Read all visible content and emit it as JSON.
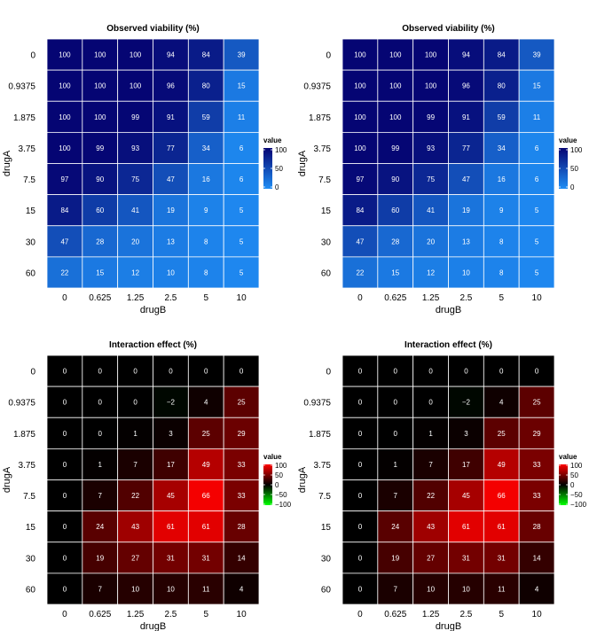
{
  "chart_data": [
    {
      "type": "heatmap",
      "panel": "top-left",
      "title": "Observed viability (%)",
      "xlabel": "drugB",
      "ylabel": "drugA",
      "x_categories": [
        "0",
        "0.625",
        "1.25",
        "2.5",
        "5",
        "10"
      ],
      "y_categories": [
        "0",
        "0.9375",
        "1.875",
        "3.75",
        "7.5",
        "15",
        "30",
        "60"
      ],
      "values": [
        [
          100,
          100,
          100,
          94,
          84,
          39
        ],
        [
          100,
          100,
          100,
          96,
          80,
          15
        ],
        [
          100,
          100,
          99,
          91,
          59,
          11
        ],
        [
          100,
          99,
          93,
          77,
          34,
          6
        ],
        [
          97,
          90,
          75,
          47,
          16,
          6
        ],
        [
          84,
          60,
          41,
          19,
          9,
          5
        ],
        [
          47,
          28,
          20,
          13,
          8,
          5
        ],
        [
          22,
          15,
          12,
          10,
          8,
          5
        ]
      ],
      "scale": "viability",
      "legend": {
        "title": "value",
        "ticks": [
          "100",
          "50",
          "0"
        ],
        "range": [
          0,
          100
        ]
      }
    },
    {
      "type": "heatmap",
      "panel": "top-right",
      "title": "Observed viability (%)",
      "xlabel": "drugB",
      "ylabel": "drugA",
      "x_categories": [
        "0",
        "0.625",
        "1.25",
        "2.5",
        "5",
        "10"
      ],
      "y_categories": [
        "0",
        "0.9375",
        "1.875",
        "3.75",
        "7.5",
        "15",
        "30",
        "60"
      ],
      "values": [
        [
          100,
          100,
          100,
          94,
          84,
          39
        ],
        [
          100,
          100,
          100,
          96,
          80,
          15
        ],
        [
          100,
          100,
          99,
          91,
          59,
          11
        ],
        [
          100,
          99,
          93,
          77,
          34,
          6
        ],
        [
          97,
          90,
          75,
          47,
          16,
          6
        ],
        [
          84,
          60,
          41,
          19,
          9,
          5
        ],
        [
          47,
          28,
          20,
          13,
          8,
          5
        ],
        [
          22,
          15,
          12,
          10,
          8,
          5
        ]
      ],
      "scale": "viability",
      "legend": {
        "title": "value",
        "ticks": [
          "100",
          "50",
          "0"
        ],
        "range": [
          0,
          100
        ]
      }
    },
    {
      "type": "heatmap",
      "panel": "bottom-left",
      "title": "Interaction effect (%)",
      "xlabel": "drugB",
      "ylabel": "drugA",
      "x_categories": [
        "0",
        "0.625",
        "1.25",
        "2.5",
        "5",
        "10"
      ],
      "y_categories": [
        "0",
        "0.9375",
        "1.875",
        "3.75",
        "7.5",
        "15",
        "30",
        "60"
      ],
      "values": [
        [
          0,
          0,
          0,
          0,
          0,
          0
        ],
        [
          0,
          0,
          0,
          -2,
          4,
          25
        ],
        [
          0,
          0,
          1,
          3,
          25,
          29
        ],
        [
          0,
          1,
          7,
          17,
          49,
          33
        ],
        [
          0,
          7,
          22,
          45,
          66,
          33
        ],
        [
          0,
          24,
          43,
          61,
          61,
          28
        ],
        [
          0,
          19,
          27,
          31,
          31,
          14
        ],
        [
          0,
          7,
          10,
          10,
          11,
          4
        ]
      ],
      "scale": "interaction",
      "legend": {
        "title": "value",
        "ticks": [
          "100",
          "50",
          "0",
          "−50",
          "−100"
        ],
        "range": [
          -100,
          100
        ]
      }
    },
    {
      "type": "heatmap",
      "panel": "bottom-right",
      "title": "Interaction effect (%)",
      "xlabel": "drugB",
      "ylabel": "drugA",
      "x_categories": [
        "0",
        "0.625",
        "1.25",
        "2.5",
        "5",
        "10"
      ],
      "y_categories": [
        "0",
        "0.9375",
        "1.875",
        "3.75",
        "7.5",
        "15",
        "30",
        "60"
      ],
      "values": [
        [
          0,
          0,
          0,
          0,
          0,
          0
        ],
        [
          0,
          0,
          0,
          -2,
          4,
          25
        ],
        [
          0,
          0,
          1,
          3,
          25,
          29
        ],
        [
          0,
          1,
          7,
          17,
          49,
          33
        ],
        [
          0,
          7,
          22,
          45,
          66,
          33
        ],
        [
          0,
          24,
          43,
          61,
          61,
          28
        ],
        [
          0,
          19,
          27,
          31,
          31,
          14
        ],
        [
          0,
          7,
          10,
          10,
          11,
          4
        ]
      ],
      "scale": "interaction",
      "legend": {
        "title": "value",
        "ticks": [
          "100",
          "50",
          "0",
          "−50",
          "−100"
        ],
        "range": [
          -100,
          100
        ]
      }
    }
  ],
  "colors": {
    "viability_low": "#1f8ef5",
    "viability_high": "#050573",
    "interaction_zero": "#000000",
    "interaction_positive": "#ff0000",
    "interaction_negative": "#00ff00",
    "cell_border": "#ffffff",
    "cell_text": "#ffffff",
    "axis_text": "#000000"
  }
}
